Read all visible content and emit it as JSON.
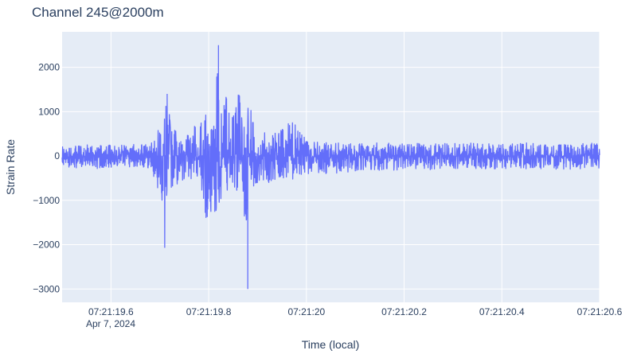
{
  "chart_data": {
    "type": "line",
    "title": "Channel 245@2000m",
    "xlabel": "Time (local)",
    "ylabel": "Strain Rate",
    "date_label": "Apr 7, 2024",
    "xlim": [
      "07:21:19.5",
      "07:21:20.6"
    ],
    "ylim": [
      -3300,
      2800
    ],
    "x_ticks": [
      "07:21:19.6",
      "07:21:19.8",
      "07:21:20",
      "07:21:20.2",
      "07:21:20.4",
      "07:21:20.6"
    ],
    "y_ticks": [
      "2000",
      "1000",
      "0",
      "−1000",
      "−2000",
      "−3000"
    ],
    "y_tick_values": [
      2000,
      1000,
      0,
      -1000,
      -2000,
      -3000
    ],
    "grid": true,
    "line_color": "#636efa",
    "plot_bg": "#e5ecf6",
    "series": [
      {
        "x_start": "07:21:19.5",
        "x_end": "07:21:20.6",
        "envelope_points": [
          [
            0.0,
            250
          ],
          [
            0.05,
            250
          ],
          [
            0.1,
            250
          ],
          [
            0.15,
            260
          ],
          [
            0.18,
            300
          ],
          [
            0.195,
            650
          ],
          [
            0.2,
            650
          ],
          [
            0.205,
            900
          ],
          [
            0.21,
            1100
          ],
          [
            0.215,
            1400
          ],
          [
            0.22,
            900
          ],
          [
            0.23,
            700
          ],
          [
            0.24,
            350
          ],
          [
            0.26,
            500
          ],
          [
            0.28,
            900
          ],
          [
            0.29,
            700
          ],
          [
            0.3,
            1500
          ],
          [
            0.32,
            2500
          ],
          [
            0.33,
            1800
          ],
          [
            0.34,
            1100
          ],
          [
            0.35,
            900
          ],
          [
            0.36,
            1700
          ],
          [
            0.37,
            800
          ],
          [
            0.38,
            1100
          ],
          [
            0.385,
            1500
          ],
          [
            0.39,
            800
          ],
          [
            0.4,
            550
          ],
          [
            0.42,
            750
          ],
          [
            0.44,
            500
          ],
          [
            0.47,
            800
          ],
          [
            0.5,
            400
          ],
          [
            0.55,
            300
          ],
          [
            0.6,
            280
          ],
          [
            0.65,
            300
          ],
          [
            0.7,
            280
          ],
          [
            0.75,
            300
          ],
          [
            0.8,
            280
          ],
          [
            0.85,
            300
          ],
          [
            0.9,
            260
          ],
          [
            0.95,
            300
          ],
          [
            1.0,
            250
          ],
          [
            1.1,
            300
          ]
        ],
        "envelope_points_neg": [
          [
            0.0,
            -250
          ],
          [
            0.05,
            -300
          ],
          [
            0.1,
            -300
          ],
          [
            0.15,
            -250
          ],
          [
            0.18,
            -300
          ],
          [
            0.195,
            -700
          ],
          [
            0.2,
            -900
          ],
          [
            0.205,
            -1200
          ],
          [
            0.21,
            -2070
          ],
          [
            0.215,
            -1300
          ],
          [
            0.22,
            -1000
          ],
          [
            0.23,
            -700
          ],
          [
            0.24,
            -600
          ],
          [
            0.26,
            -550
          ],
          [
            0.28,
            -500
          ],
          [
            0.29,
            -1300
          ],
          [
            0.3,
            -1600
          ],
          [
            0.31,
            -1200
          ],
          [
            0.32,
            -1500
          ],
          [
            0.33,
            -900
          ],
          [
            0.34,
            -750
          ],
          [
            0.35,
            -600
          ],
          [
            0.36,
            -1000
          ],
          [
            0.37,
            -800
          ],
          [
            0.38,
            -3000
          ],
          [
            0.385,
            -800
          ],
          [
            0.39,
            -700
          ],
          [
            0.4,
            -600
          ],
          [
            0.42,
            -650
          ],
          [
            0.44,
            -500
          ],
          [
            0.47,
            -550
          ],
          [
            0.5,
            -400
          ],
          [
            0.55,
            -400
          ],
          [
            0.6,
            -350
          ],
          [
            0.65,
            -350
          ],
          [
            0.7,
            -300
          ],
          [
            0.75,
            -350
          ],
          [
            0.8,
            -300
          ],
          [
            0.85,
            -300
          ],
          [
            0.9,
            -300
          ],
          [
            0.95,
            -300
          ],
          [
            1.0,
            -300
          ],
          [
            1.1,
            -300
          ]
        ]
      }
    ]
  }
}
